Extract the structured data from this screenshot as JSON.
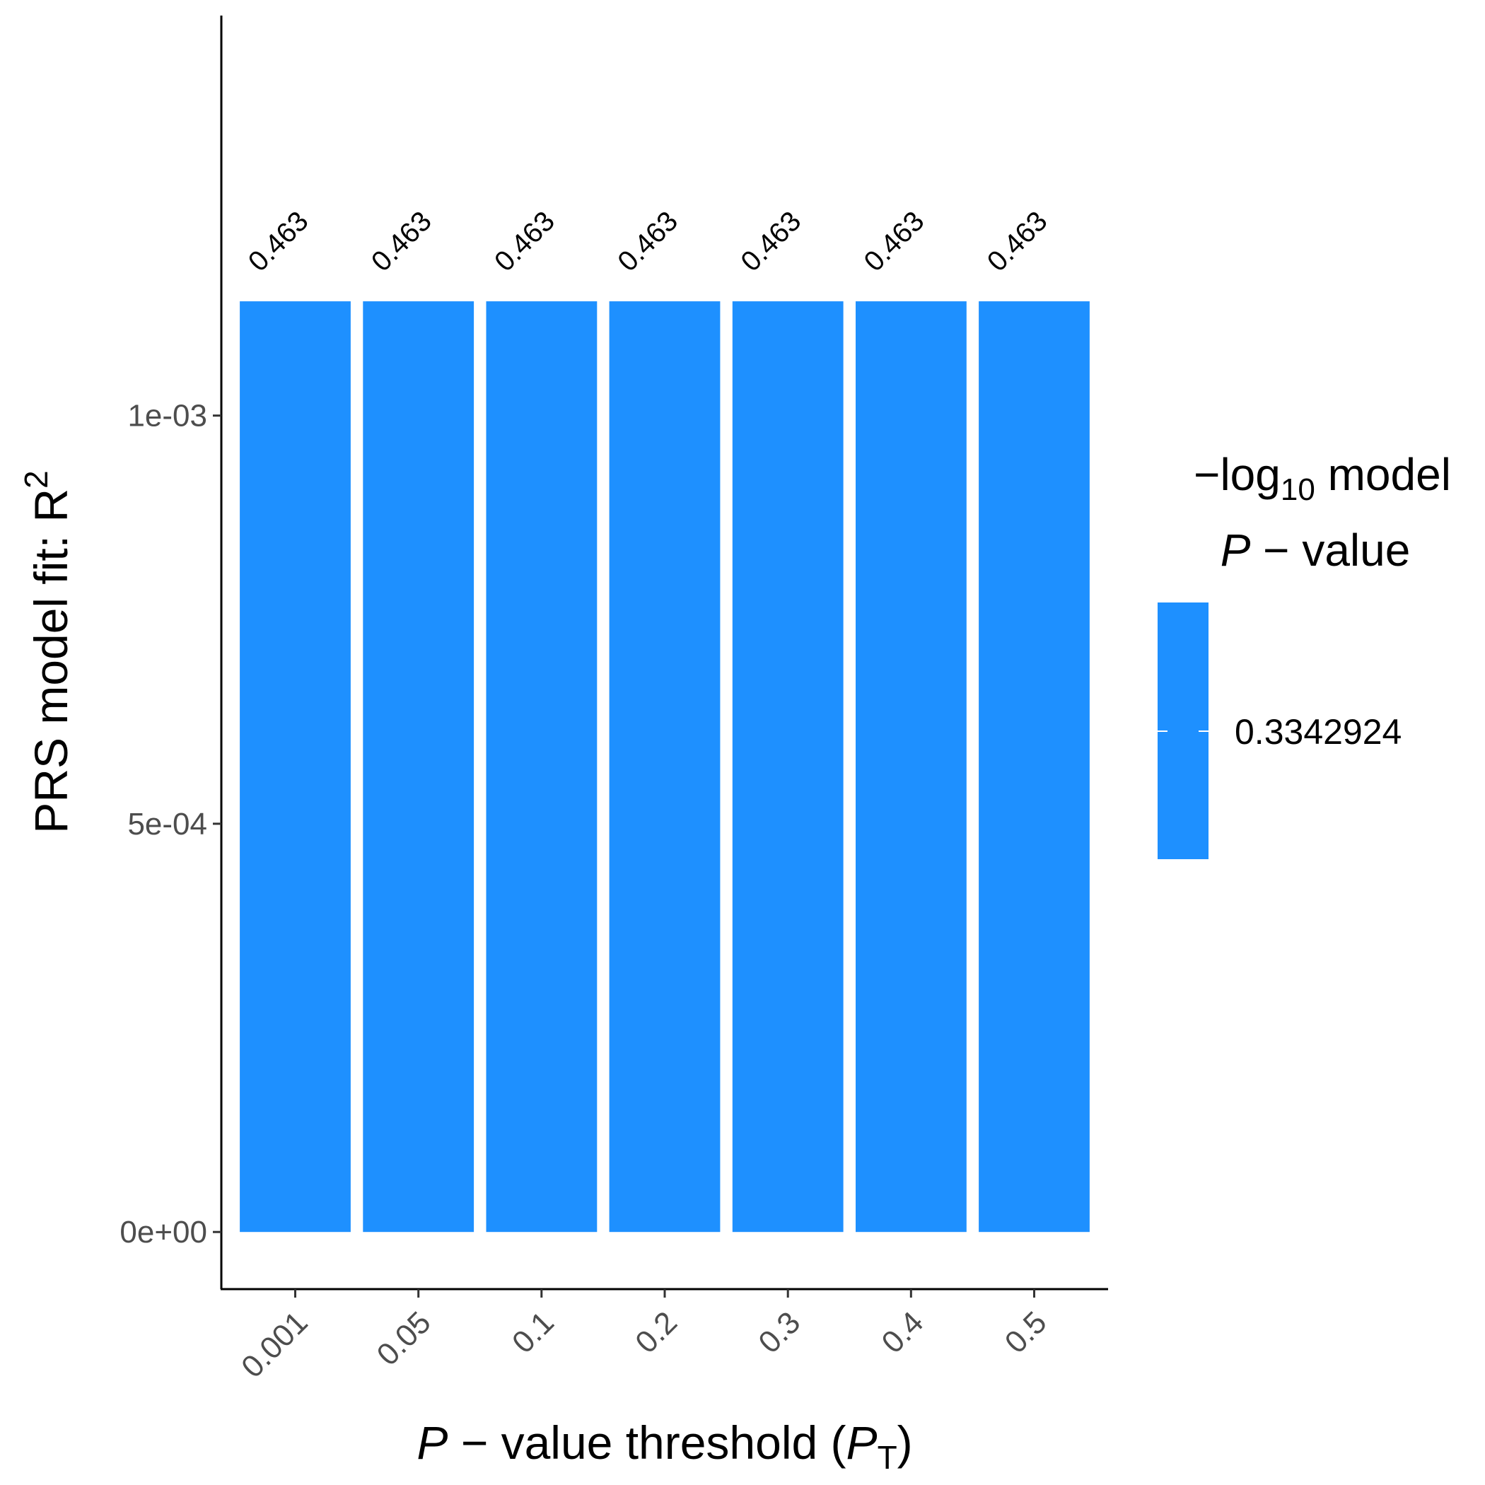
{
  "chart_data": {
    "type": "bar",
    "categories": [
      "0.001",
      "0.05",
      "0.1",
      "0.2",
      "0.3",
      "0.4",
      "0.5"
    ],
    "values": [
      0.00114,
      0.00114,
      0.00114,
      0.00114,
      0.00114,
      0.00114,
      0.00114
    ],
    "data_labels": [
      "0.463",
      "0.463",
      "0.463",
      "0.463",
      "0.463",
      "0.463",
      "0.463"
    ],
    "y_ticks": [
      0,
      0.0005,
      0.001
    ],
    "y_tick_labels": [
      "0e+00",
      "5e-04",
      "1e-03"
    ],
    "ylim": [
      -7e-05,
      0.00149
    ],
    "x_title": {
      "italic": "P",
      "rest": " − value threshold (",
      "sub_italic": "P",
      "sub": "T",
      "close": ")"
    },
    "y_title": {
      "main": "PRS model fit:  R",
      "sup": "2"
    },
    "legend": {
      "title_line1_prefix": "−log",
      "title_line1_sub": "10",
      "title_line1_suffix": " model",
      "title_line2_italic": "P",
      "title_line2_rest": " − value",
      "label": "0.3342924",
      "placement": "right"
    },
    "bar_color": "#1E90FF",
    "grid": false
  }
}
